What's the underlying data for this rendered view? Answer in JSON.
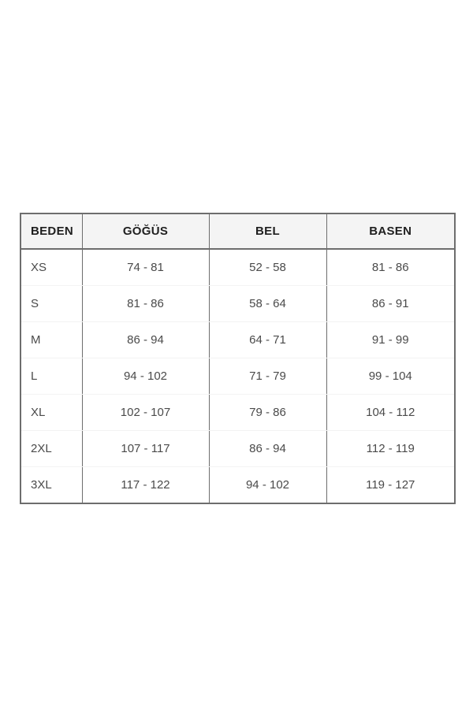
{
  "size_chart": {
    "columns": [
      "BEDEN",
      "GÖĞÜS",
      "BEL",
      "BASEN"
    ],
    "rows": [
      [
        "XS",
        "74 - 81",
        "52 - 58",
        "81 - 86"
      ],
      [
        "S",
        "81 - 86",
        "58 - 64",
        "86 - 91"
      ],
      [
        "M",
        "86 - 94",
        "64 - 71",
        "91 - 99"
      ],
      [
        "L",
        "94 - 102",
        "71 - 79",
        "99 - 104"
      ],
      [
        "XL",
        "102 - 107",
        "79 - 86",
        "104 - 112"
      ],
      [
        "2XL",
        "107 - 117",
        "86 - 94",
        "112 - 119"
      ],
      [
        "3XL",
        "117 - 122",
        "94 - 102",
        "119 - 127"
      ]
    ],
    "colors": {
      "page_background": "#ffffff",
      "table_border": "#6d6d6d",
      "header_background": "#f4f4f4",
      "header_text": "#1f1f1f",
      "body_text": "#4a4a4a",
      "row_separator": "#f3f3f3"
    }
  }
}
